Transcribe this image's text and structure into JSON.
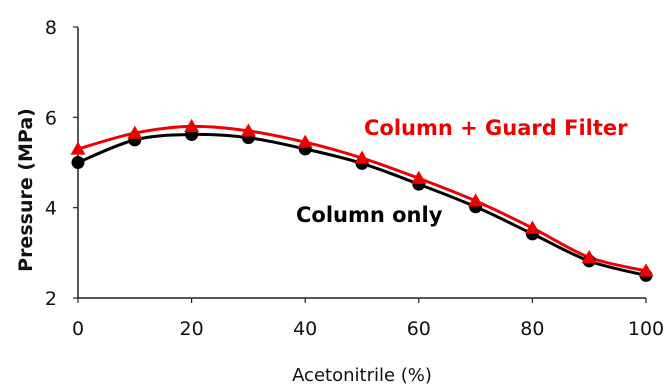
{
  "chart_data": {
    "type": "line",
    "xlabel": "Acetonitrile (%)",
    "ylabel": "Pressure (MPa)",
    "xlim": [
      0,
      100
    ],
    "ylim": [
      2,
      8
    ],
    "xticks": [
      "0",
      "20",
      "40",
      "60",
      "80",
      "100"
    ],
    "yticks": [
      "2",
      "4",
      "6",
      "8"
    ],
    "x": [
      0,
      10,
      20,
      30,
      40,
      50,
      60,
      70,
      80,
      90,
      100
    ],
    "grid": false,
    "legend": "inline labels",
    "series": [
      {
        "name": "Column + Guard Filter",
        "marker": "triangle",
        "color": "#ee0000",
        "values": [
          5.3,
          5.65,
          5.8,
          5.7,
          5.45,
          5.1,
          4.65,
          4.15,
          3.55,
          2.9,
          2.6
        ]
      },
      {
        "name": "Column only",
        "marker": "circle",
        "color": "#000000",
        "values": [
          5.0,
          5.5,
          5.62,
          5.55,
          5.3,
          4.98,
          4.52,
          4.02,
          3.42,
          2.82,
          2.5
        ]
      }
    ]
  }
}
